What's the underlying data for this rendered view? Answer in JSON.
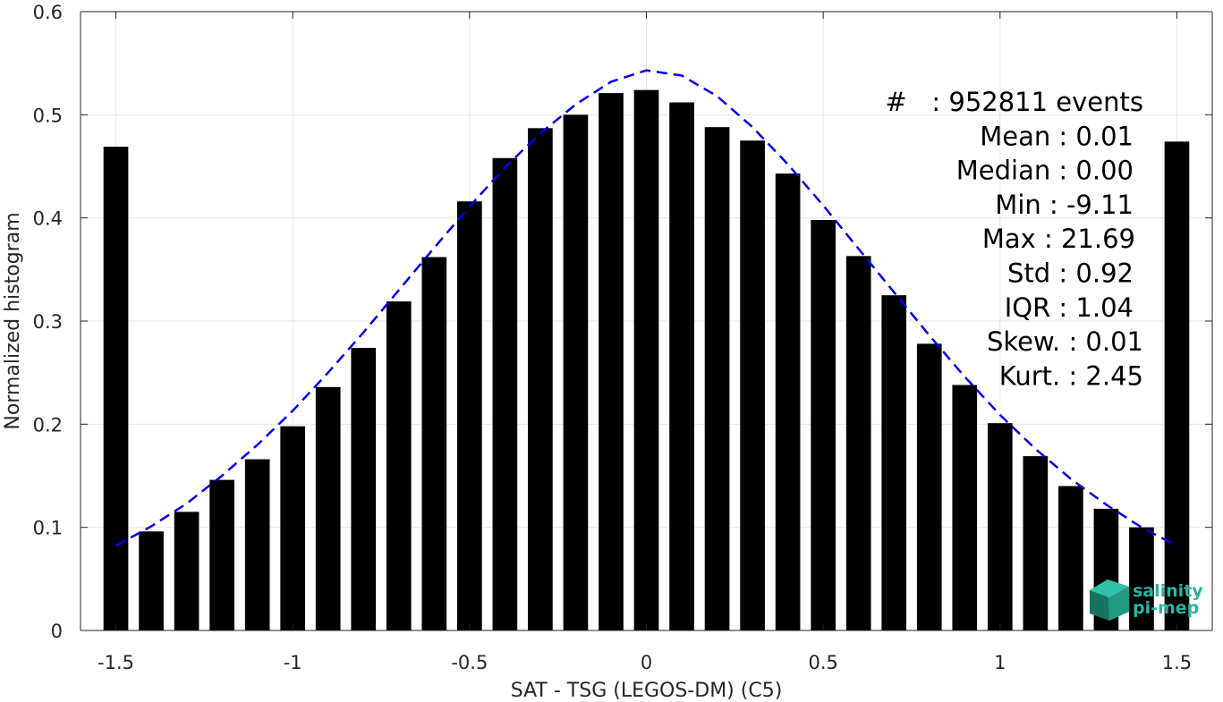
{
  "colors": {
    "bar": "#000000",
    "fit_curve": "#0000ee",
    "grid": "#e6e6e6",
    "axis": "#262626",
    "logo_accent": "#2bb3a3",
    "logo_dark": "#17735f"
  },
  "chart_data": {
    "type": "bar",
    "xlabel": "SAT - TSG (LEGOS-DM) (C5)",
    "ylabel": "Normalized histogram",
    "xlim": [
      -1.6,
      1.6
    ],
    "ylim": [
      0,
      0.6
    ],
    "grid": true,
    "x_ticks": [
      -1.5,
      -1,
      -0.5,
      0,
      0.5,
      1,
      1.5
    ],
    "x_tick_labels": [
      "-1.5",
      "-1",
      "-0.5",
      "0",
      "0.5",
      "1",
      "1.5"
    ],
    "y_ticks": [
      0,
      0.1,
      0.2,
      0.3,
      0.4,
      0.5,
      0.6
    ],
    "y_tick_labels": [
      "0",
      "0.1",
      "0.2",
      "0.3",
      "0.4",
      "0.5",
      "0.6"
    ],
    "bar_width": 0.07,
    "bars": {
      "x": [
        -1.5,
        -1.4,
        -1.3,
        -1.2,
        -1.1,
        -1.0,
        -0.9,
        -0.8,
        -0.7,
        -0.6,
        -0.5,
        -0.4,
        -0.3,
        -0.2,
        -0.1,
        0.0,
        0.1,
        0.2,
        0.3,
        0.4,
        0.5,
        0.6,
        0.7,
        0.8,
        0.9,
        1.0,
        1.1,
        1.2,
        1.3,
        1.4,
        1.5
      ],
      "values": [
        0.469,
        0.096,
        0.115,
        0.146,
        0.166,
        0.198,
        0.236,
        0.274,
        0.319,
        0.362,
        0.416,
        0.458,
        0.487,
        0.5,
        0.521,
        0.524,
        0.512,
        0.488,
        0.475,
        0.443,
        0.398,
        0.363,
        0.325,
        0.278,
        0.238,
        0.201,
        0.169,
        0.14,
        0.118,
        0.1,
        0.474
      ]
    },
    "fit_curve": {
      "style": "dashed",
      "x": [
        -1.5,
        -1.4,
        -1.3,
        -1.2,
        -1.1,
        -1.0,
        -0.9,
        -0.8,
        -0.7,
        -0.6,
        -0.5,
        -0.4,
        -0.3,
        -0.2,
        -0.1,
        0.0,
        0.1,
        0.2,
        0.3,
        0.4,
        0.5,
        0.6,
        0.7,
        0.8,
        0.9,
        1.0,
        1.1,
        1.2,
        1.3,
        1.4,
        1.5
      ],
      "y": [
        0.082,
        0.101,
        0.123,
        0.15,
        0.18,
        0.213,
        0.25,
        0.289,
        0.33,
        0.371,
        0.411,
        0.449,
        0.482,
        0.51,
        0.532,
        0.543,
        0.538,
        0.518,
        0.488,
        0.452,
        0.412,
        0.37,
        0.328,
        0.286,
        0.246,
        0.209,
        0.176,
        0.147,
        0.122,
        0.1,
        0.082
      ]
    },
    "annotations": [
      "#   : 952811 events",
      "Mean : 0.01",
      "Median : 0.00",
      "Min : -9.11",
      "Max : 21.69",
      "Std : 0.92",
      "IQR : 1.04",
      "Skew. : 0.01",
      "Kurt. : 2.45"
    ]
  },
  "logo": {
    "line1": "salinity",
    "line2": "pi-mep"
  }
}
